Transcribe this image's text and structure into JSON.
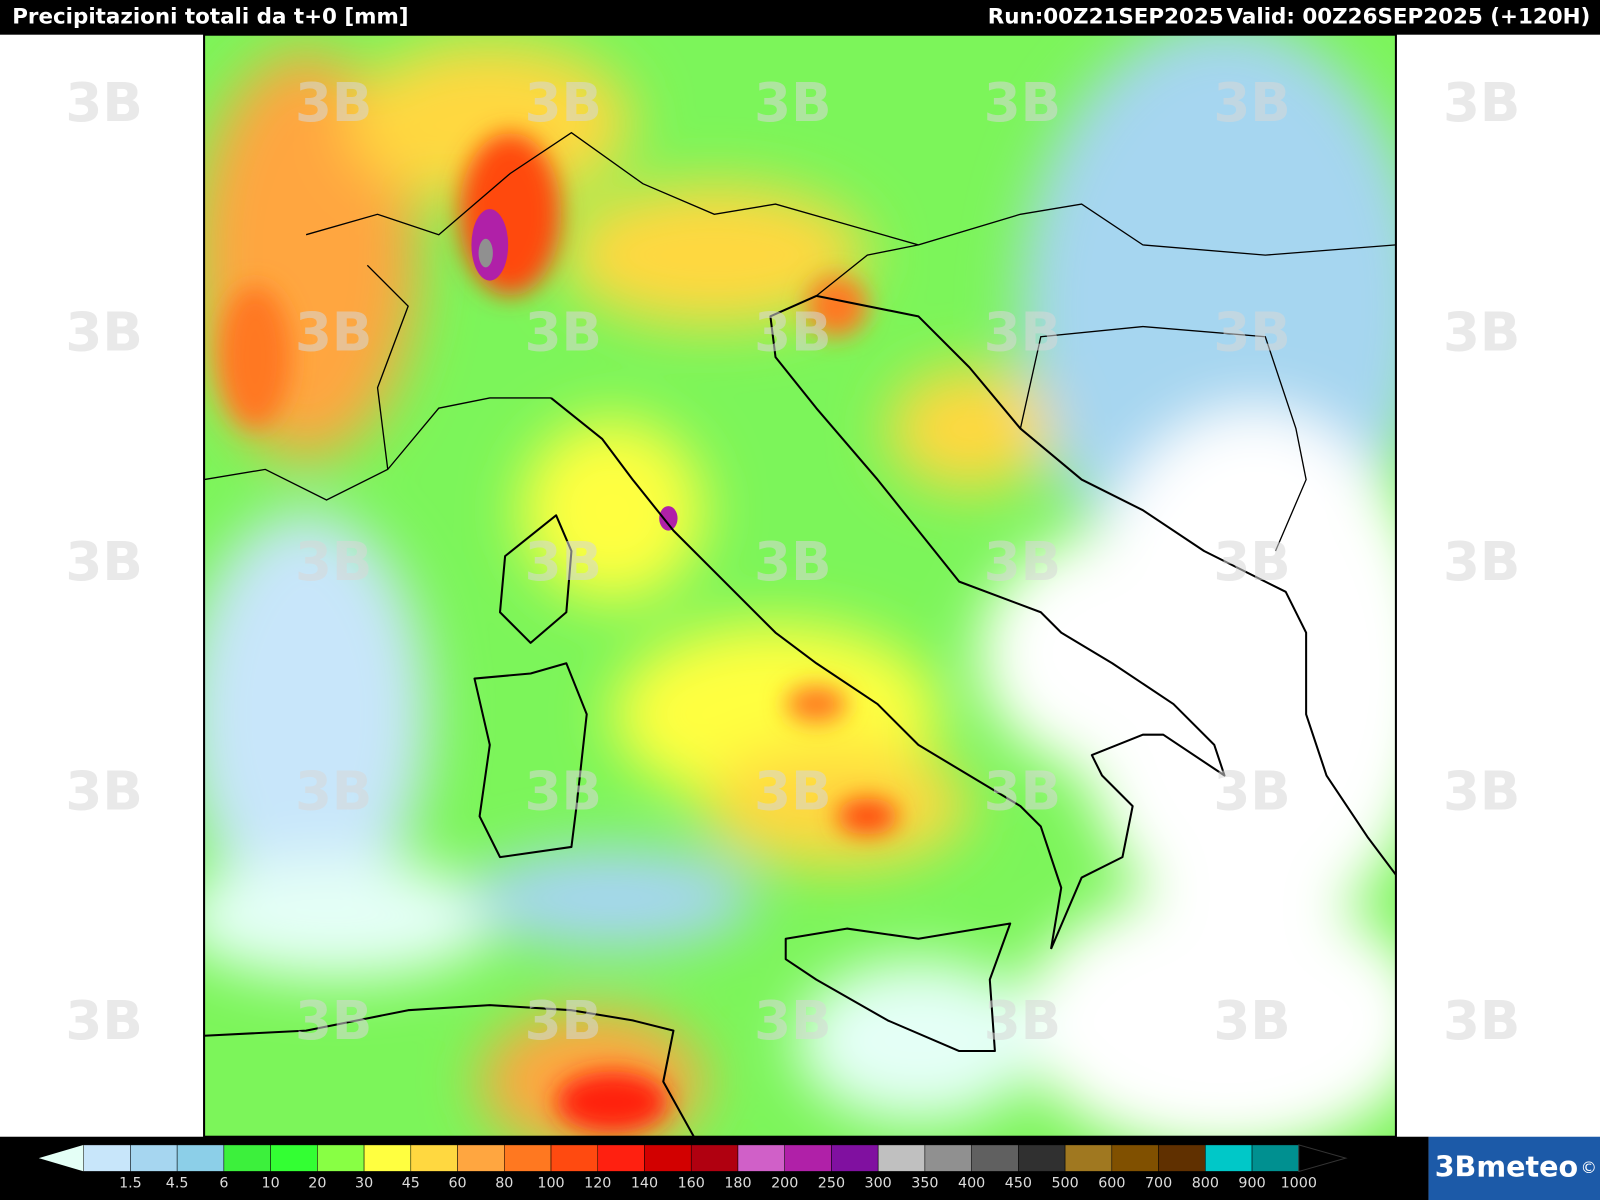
{
  "header": {
    "title": "Precipitazioni totali da t+0 [mm]",
    "run": "Run:00Z21SEP2025",
    "valid": "Valid: 00Z26SEP2025 (+120H)"
  },
  "watermark": "3B",
  "legend": {
    "labels": [
      1.5,
      4.5,
      6,
      10,
      20,
      30,
      45,
      60,
      80,
      100,
      120,
      140,
      160,
      180,
      200,
      250,
      300,
      350,
      400,
      450,
      500,
      600,
      700,
      800,
      900,
      1000
    ],
    "colors": [
      "#e4fff6",
      "#c8e6fa",
      "#a6d6f0",
      "#8ccfe8",
      "#3cf03c",
      "#33ff33",
      "#88ff44",
      "#ffff40",
      "#ffd840",
      "#ffa640",
      "#ff7820",
      "#ff4a10",
      "#ff2010",
      "#d20000",
      "#b00010",
      "#d060c8",
      "#b020a8",
      "#8010a0",
      "#c0c0c0",
      "#909090",
      "#606060",
      "#303030",
      "#a07820",
      "#805000",
      "#603000",
      "#00c8c8",
      "#009090"
    ]
  },
  "logo": {
    "text": "3Bmeteo",
    "mark": "©"
  }
}
